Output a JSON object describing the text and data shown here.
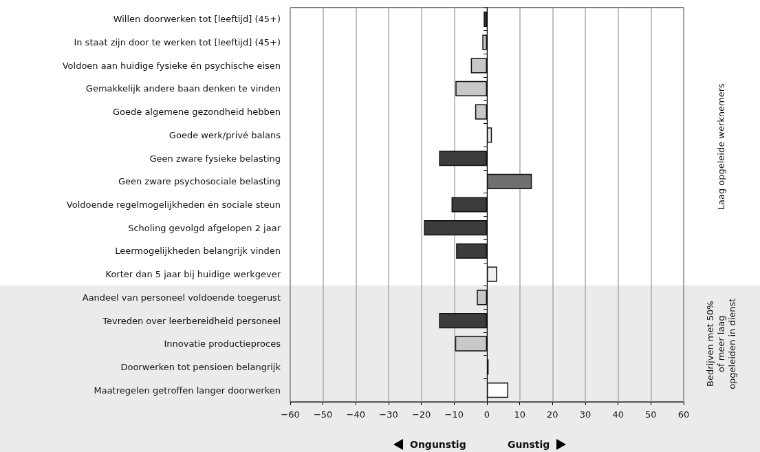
{
  "chart_data": {
    "type": "bar",
    "orientation": "horizontal",
    "categories": [
      "Willen doorwerken tot [leeftijd] (45+)",
      "In staat zijn door te werken tot [leeftijd] (45+)",
      "Voldoen aan huidige fysieke én psychische eisen",
      "Gemakkelijk andere baan denken te vinden",
      "Goede algemene gezondheid hebben",
      "Goede werk/privé balans",
      "Geen zware fysieke belasting",
      "Geen zware psychosociale belasting",
      "Voldoende regelmogelijkheden én sociale steun",
      "Scholing gevolgd afgelopen 2 jaar",
      "Leermogelijkheden belangrijk vinden",
      "Korter dan 5 jaar bij huidige werkgever",
      "Aandeel van personeel voldoende toegerust",
      "Tevreden over leerbereidheid personeel",
      "Innovatie productieproces",
      "Doorwerken tot pensioen belangrijk",
      "Maatregelen getroffen langer doorwerken"
    ],
    "values": [
      -1.0,
      -1.4,
      -4.9,
      -9.6,
      -3.6,
      1.5,
      -14.6,
      13.7,
      -10.8,
      -19.2,
      -9.4,
      3.1,
      -3.1,
      -14.6,
      -9.7,
      0.5,
      6.5
    ],
    "colors": [
      "#3c3c3c",
      "#c8c8c8",
      "#c8c8c8",
      "#c8c8c8",
      "#c8c8c8",
      "#f0f0f0",
      "#3c3c3c",
      "#707070",
      "#3c3c3c",
      "#3c3c3c",
      "#3c3c3c",
      "#f0f0f0",
      "#c8c8c8",
      "#3c3c3c",
      "#c8c8c8",
      "#ffffff",
      "#ffffff"
    ],
    "xlim": [
      -60,
      60
    ],
    "xticks": [
      -60,
      -50,
      -40,
      -30,
      -20,
      -10,
      0,
      10,
      20,
      30,
      40,
      50,
      60
    ],
    "grid": "x",
    "ref_lines": [
      {
        "axis": "x",
        "value": 0
      }
    ],
    "annotations": [
      "Ongunstig",
      "Gunstig",
      "Laag opgeleide werknemers",
      "Bedrijven met 50%\nof meer laag\nopgeleiden in dienst"
    ]
  }
}
